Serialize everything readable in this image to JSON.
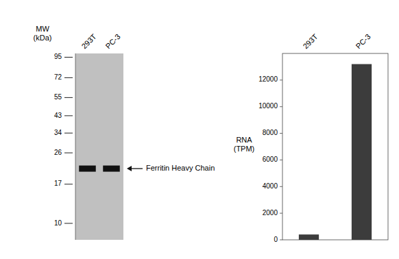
{
  "chart_data": [
    {
      "type": "western_blot",
      "log": "y",
      "ylabel": "MW\n(kDa)",
      "ylim": [
        8,
        100
      ],
      "yticks": [
        95,
        72,
        55,
        43,
        34,
        26,
        17,
        10
      ],
      "categories": [
        "293T",
        "PC-3"
      ],
      "values": [
        21,
        21
      ],
      "color": "#111111",
      "annotation": "Ferritin Heavy Chain"
    },
    {
      "type": "bar",
      "ylabel": "RNA\n(TPM)",
      "categories": [
        "293T",
        "PC-3"
      ],
      "values": [
        400,
        13200
      ],
      "color": "#3c3c3c",
      "ylim": [
        0,
        14000
      ],
      "yticks": [
        0,
        2000,
        4000,
        6000,
        8000,
        10000,
        12000
      ]
    }
  ]
}
